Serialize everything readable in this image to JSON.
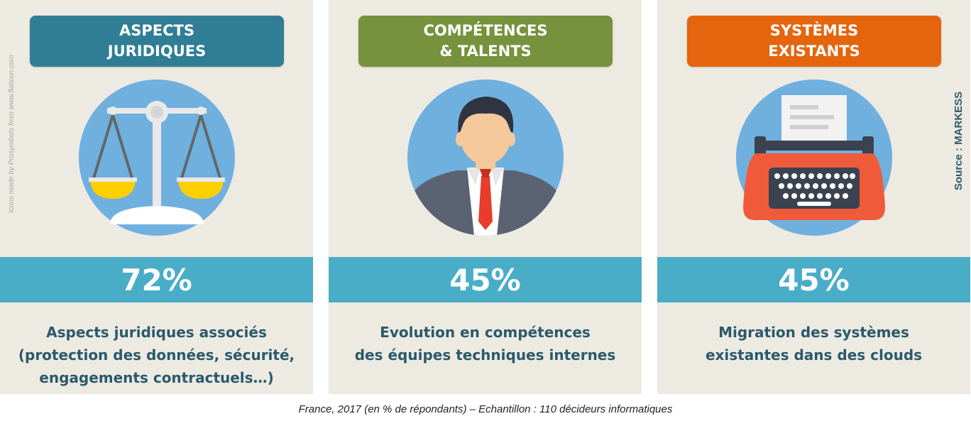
{
  "credit": "Icons made by Prosymbols from www.flaticon.com",
  "source": "Source : MARKESS",
  "footer": "France, 2017 (en % de répondants) – Echantillon : 110 décideurs informatiques",
  "colors": {
    "panel_bg": "#edeae2",
    "band": "#4aadc7",
    "juridique": "#2f7e95",
    "competences": "#76923c",
    "systemes": "#e4650d",
    "text": "#2a5a6a"
  },
  "panels": [
    {
      "title_line1": "ASPECTS",
      "title_line2": "JURIDIQUES",
      "icon": "scales-of-justice-icon",
      "percent": "72%",
      "desc": [
        "Aspects juridiques associés",
        "(protection des données, sécurité,",
        "engagements contractuels…)"
      ]
    },
    {
      "title_line1": "COMPÉTENCES",
      "title_line2": "& TALENTS",
      "icon": "businessman-icon",
      "percent": "45%",
      "desc": [
        "Evolution en compétences",
        "des équipes techniques internes"
      ]
    },
    {
      "title_line1": "SYSTÈMES",
      "title_line2": "EXISTANTS",
      "icon": "typewriter-icon",
      "percent": "45%",
      "desc": [
        "Migration des systèmes",
        "existantes dans des clouds"
      ]
    }
  ]
}
